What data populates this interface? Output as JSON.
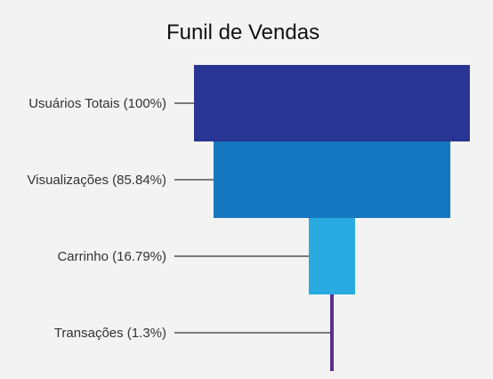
{
  "chart_data": {
    "type": "funnel",
    "title": "Funil de Vendas",
    "categories": [
      "Usuários Totais",
      "Visualizações",
      "Carrinho",
      "Transações"
    ],
    "values": [
      100,
      85.84,
      16.79,
      1.3
    ],
    "labels": [
      "Usuários Totais (100%)",
      "Visualizações (85.84%)",
      "Carrinho (16.79%)",
      "Transações (1.3%)"
    ],
    "unit": "%",
    "colors": [
      "#283593",
      "#1577bf",
      "#29abe2",
      "#5e2d91"
    ]
  }
}
